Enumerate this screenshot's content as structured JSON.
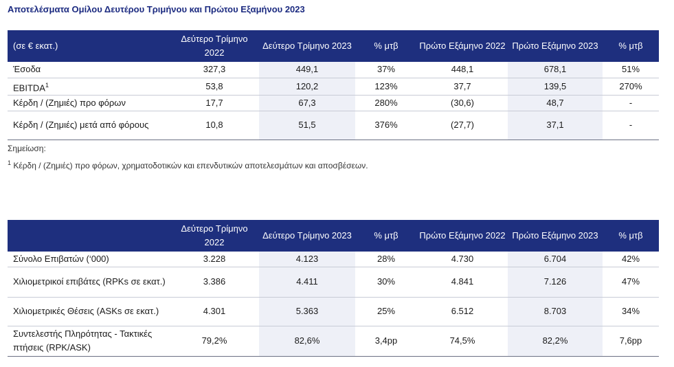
{
  "title": "Αποτελέσματα Ομίλου Δευτέρου Τριμήνου και Πρώτου Εξαμήνου 2023",
  "table1": {
    "headers": [
      "(σε € εκατ.)",
      "Δεύτερο Τρίμηνο 2022",
      "Δεύτερο Τρίμηνο 2023",
      "% μτβ",
      "Πρώτο Εξάμηνο 2022",
      "Πρώτο Εξάμηνο 2023",
      "% μτβ"
    ],
    "rows": [
      {
        "label": "Έσοδα",
        "sup": "",
        "values": [
          "327,3",
          "449,1",
          "37%",
          "448,1",
          "678,1",
          "51%"
        ]
      },
      {
        "label": "EBITDA",
        "sup": "1",
        "values": [
          "53,8",
          "120,2",
          "123%",
          "37,7",
          "139,5",
          "270%"
        ]
      },
      {
        "label": "Κέρδη / (Ζημιές) προ φόρων",
        "sup": "",
        "values": [
          "17,7",
          "67,3",
          "280%",
          "(30,6)",
          "48,7",
          "-"
        ]
      },
      {
        "label": "Κέρδη / (Ζημιές) μετά από φόρους",
        "sup": "",
        "values": [
          "10,8",
          "51,5",
          "376%",
          "(27,7)",
          "37,1",
          "-"
        ]
      }
    ]
  },
  "note_label": "Σημείωση:",
  "footnote": {
    "marker": "1",
    "text": "Κέρδη / (Ζημιές) προ φόρων, χρηματοδοτικών και επενδυτικών αποτελεσμάτων και αποσβέσεων."
  },
  "table2": {
    "headers": [
      "",
      "Δεύτερο Τρίμηνο 2022",
      "Δεύτερο Τρίμηνο 2023",
      "% μτβ",
      "Πρώτο Εξάμηνο 2022",
      "Πρώτο Εξάμηνο 2023",
      "% μτβ"
    ],
    "rows": [
      {
        "label": "Σύνολο Επιβατών (‘000)",
        "values": [
          "3.228",
          "4.123",
          "28%",
          "4.730",
          "6.704",
          "42%"
        ]
      },
      {
        "label": "Χιλιομετρικοί επιβάτες (RPKs σε εκατ.)",
        "values": [
          "3.386",
          "4.411",
          "30%",
          "4.841",
          "7.126",
          "47%"
        ]
      },
      {
        "label": "Χιλιομετρικές Θέσεις (ASKs σε εκατ.)",
        "values": [
          "4.301",
          "5.363",
          "25%",
          "6.512",
          "8.703",
          "34%"
        ]
      },
      {
        "label": "Συντελεστής Πληρότητας - Τακτικές πτήσεις (RPK/ASK)",
        "values": [
          "79,2%",
          "82,6%",
          "3,4pp",
          "74,5%",
          "82,2%",
          "7,6pp"
        ]
      }
    ]
  }
}
